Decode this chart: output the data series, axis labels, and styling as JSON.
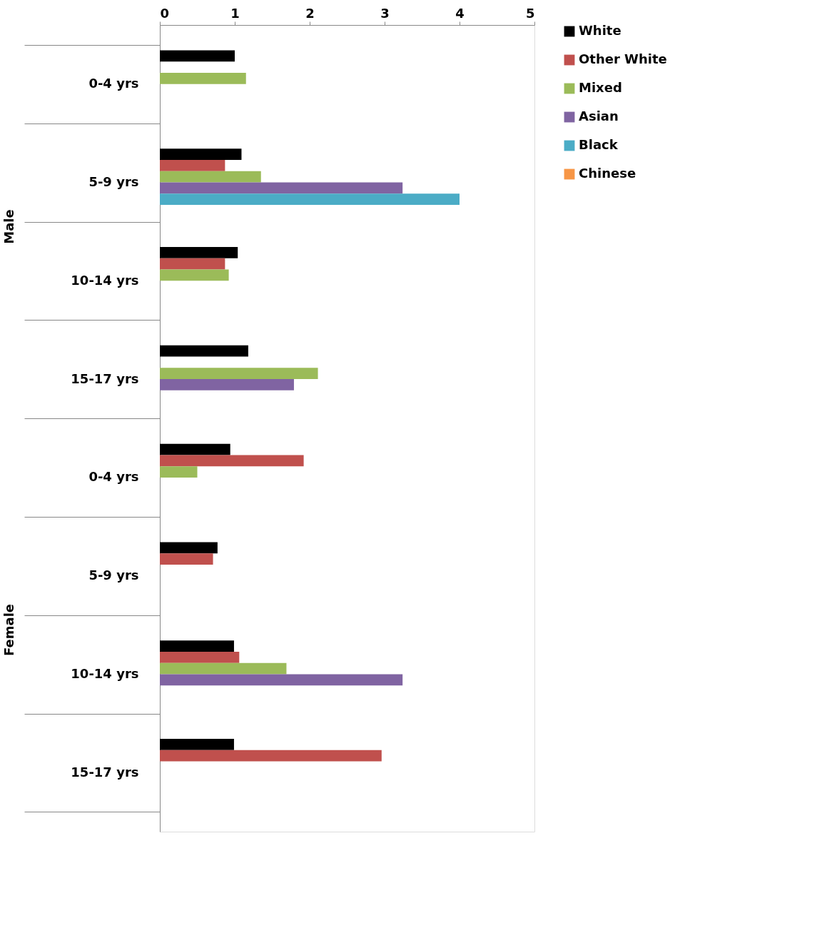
{
  "chart_data": {
    "type": "bar",
    "orientation": "horizontal",
    "categories": [
      "0-4 yrs",
      "5-9 yrs",
      "10-14 yrs",
      "15-17 yrs",
      "0-4 yrs",
      "5-9 yrs",
      "10-14 yrs",
      "15-17 yrs"
    ],
    "annotations": [
      "Male",
      "Female"
    ],
    "xlim": [
      0,
      5
    ],
    "xticks": [
      0,
      1,
      2,
      3,
      4,
      5
    ],
    "grid": false,
    "legend": "right",
    "series": [
      {
        "name": "White",
        "color": "#000000",
        "values": [
          1.0,
          1.09,
          1.04,
          1.18,
          0.94,
          0.77,
          0.99,
          0.99
        ]
      },
      {
        "name": "Other White",
        "color": "#c0504d",
        "values": [
          null,
          0.87,
          0.87,
          null,
          1.92,
          0.71,
          1.06,
          2.96
        ]
      },
      {
        "name": "Mixed",
        "color": "#9bbb59",
        "values": [
          1.15,
          1.35,
          0.92,
          2.11,
          0.5,
          null,
          1.69,
          null
        ]
      },
      {
        "name": "Asian",
        "color": "#8064a2",
        "values": [
          null,
          3.24,
          null,
          1.79,
          null,
          null,
          3.24,
          null
        ]
      },
      {
        "name": "Black",
        "color": "#4bacc6",
        "values": [
          null,
          4.0,
          null,
          null,
          null,
          null,
          null,
          null
        ]
      },
      {
        "name": "Chinese",
        "color": "#f79646",
        "values": [
          null,
          null,
          null,
          null,
          null,
          null,
          null,
          null
        ]
      }
    ]
  }
}
